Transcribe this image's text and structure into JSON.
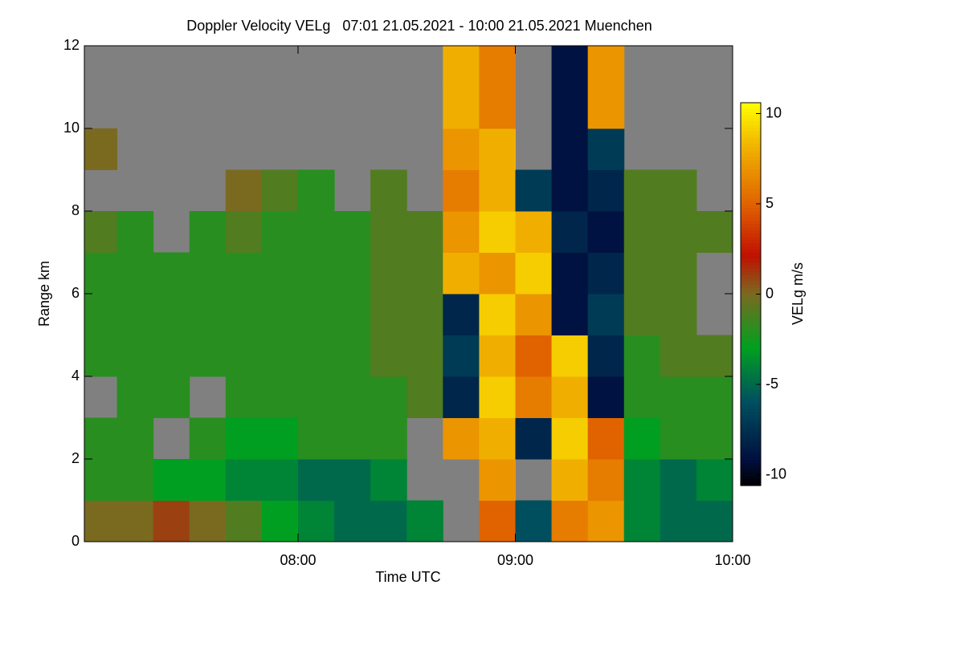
{
  "chart_data": {
    "type": "heatmap",
    "title": "Doppler Velocity VELg   07:01 21.05.2021 - 10:00 21.05.2021 Muenchen",
    "xlabel": "Time UTC",
    "ylabel": "Range km",
    "zlabel": "VELg m/s",
    "x": [
      "07:01",
      "07:10",
      "07:20",
      "07:30",
      "07:40",
      "07:50",
      "08:00",
      "08:10",
      "08:20",
      "08:30",
      "08:40",
      "08:50",
      "09:00",
      "09:10",
      "09:20",
      "09:30",
      "09:40",
      "09:50"
    ],
    "y": [
      0,
      1,
      2,
      3,
      4,
      5,
      6,
      7,
      8,
      9,
      10,
      11
    ],
    "z": [
      [
        0,
        0,
        1,
        0,
        -1,
        -3,
        -4,
        -5,
        -5,
        -4,
        null,
        5,
        -6,
        6,
        7,
        -4,
        -5,
        -5
      ],
      [
        -2,
        -2,
        -3,
        -3,
        -4,
        -4,
        -5,
        -5,
        -4,
        null,
        null,
        7,
        null,
        8,
        6,
        -4,
        -5,
        -4
      ],
      [
        -2,
        -2,
        null,
        -2,
        -3,
        -3,
        -2,
        -2,
        -2,
        null,
        7,
        8,
        -8,
        9,
        5,
        -3,
        -2,
        -2
      ],
      [
        null,
        -2,
        -2,
        null,
        -2,
        -2,
        -2,
        -2,
        -2,
        -1,
        -8,
        9,
        6,
        8,
        -9,
        -2,
        -2,
        -2
      ],
      [
        -2,
        -2,
        -2,
        -2,
        -2,
        -2,
        -2,
        -2,
        -1,
        -1,
        -7,
        8,
        5,
        9,
        -8,
        -2,
        -1,
        -1
      ],
      [
        -2,
        -2,
        -2,
        -2,
        -2,
        -2,
        -2,
        -2,
        -1,
        -1,
        -8,
        9,
        7,
        -9,
        -7,
        -1,
        -1,
        null
      ],
      [
        -2,
        -2,
        -2,
        -2,
        -2,
        -2,
        -2,
        -2,
        -1,
        -1,
        8,
        7,
        9,
        -9,
        -8,
        -1,
        -1,
        null
      ],
      [
        -1,
        -2,
        null,
        -2,
        -1,
        -2,
        -2,
        -2,
        -1,
        -1,
        7,
        9,
        8,
        -8,
        -9,
        -1,
        -1,
        -1
      ],
      [
        null,
        null,
        null,
        null,
        0,
        -1,
        -2,
        null,
        -1,
        null,
        6,
        8,
        -7,
        -9,
        -8,
        -1,
        -1,
        null
      ],
      [
        0,
        null,
        null,
        null,
        null,
        null,
        null,
        null,
        null,
        null,
        7,
        8,
        null,
        -9,
        -7,
        null,
        null,
        null
      ],
      [
        null,
        null,
        null,
        null,
        null,
        null,
        null,
        null,
        null,
        null,
        8,
        6,
        null,
        -9,
        7,
        null,
        null,
        null
      ],
      [
        null,
        null,
        null,
        null,
        null,
        null,
        null,
        null,
        null,
        null,
        8,
        6,
        null,
        -9,
        7,
        null,
        null,
        null
      ]
    ],
    "xlim": [
      "07:01",
      "10:00"
    ],
    "xticks": [
      "08:00",
      "09:00",
      "10:00"
    ],
    "ylim": [
      0,
      12
    ],
    "yticks": [
      0,
      2,
      4,
      6,
      8,
      10,
      12
    ],
    "zlim": [
      -10.6,
      10.6
    ],
    "zticks": [
      -10,
      -5,
      0,
      5,
      10
    ],
    "missing_color": "#808080"
  }
}
